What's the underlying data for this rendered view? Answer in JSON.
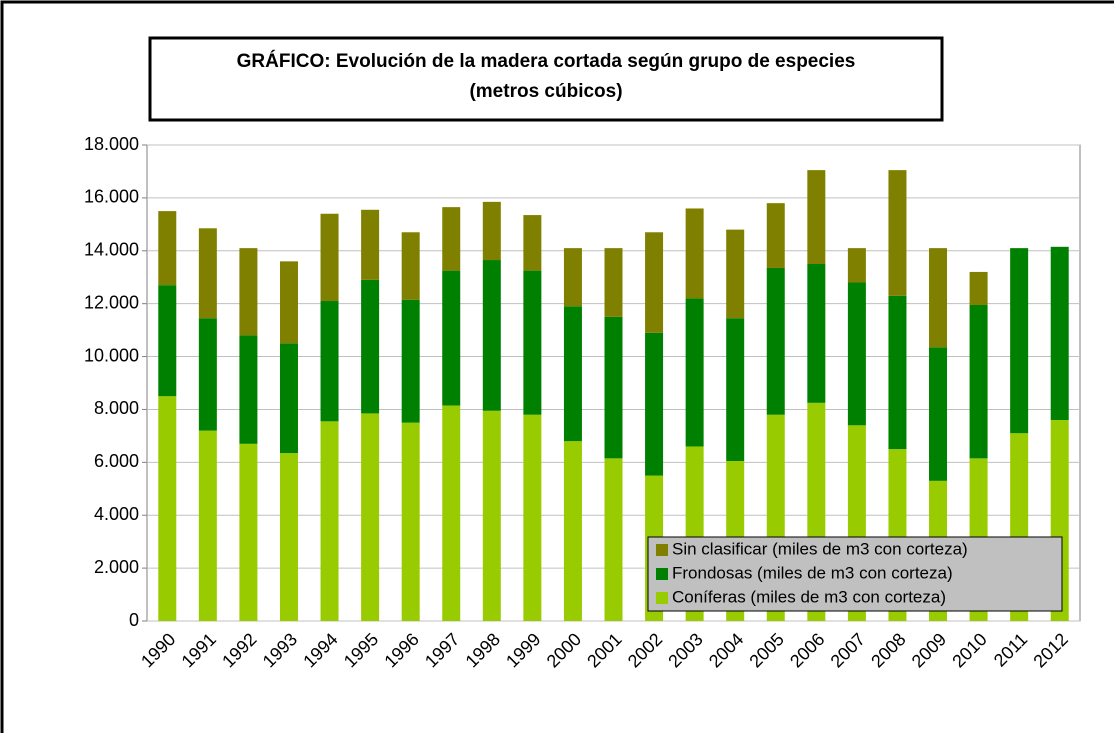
{
  "chart_data": {
    "type": "stacked_bar",
    "title": "GRÁFICO: Evolución de la  madera cortada según grupo de especies",
    "subtitle": "(metros cúbicos)",
    "categories": [
      "1990",
      "1991",
      "1992",
      "1993",
      "1994",
      "1995",
      "1996",
      "1997",
      "1998",
      "1999",
      "2000",
      "2001",
      "2002",
      "2003",
      "2004",
      "2005",
      "2006",
      "2007",
      "2008",
      "2009",
      "2010",
      "2011",
      "2012"
    ],
    "series": [
      {
        "name": "Coníferas (miles de m3 con corteza)",
        "color": "#99cc00",
        "values": [
          8500,
          7200,
          6700,
          6350,
          7550,
          7850,
          7500,
          8150,
          7950,
          7800,
          6800,
          6150,
          5500,
          6600,
          6050,
          7800,
          8250,
          7400,
          6500,
          5300,
          6150,
          7100,
          7600
        ]
      },
      {
        "name": "Frondosas (miles de m3 con corteza)",
        "color": "#008000",
        "values": [
          4200,
          4250,
          4100,
          4150,
          4550,
          5050,
          4650,
          5100,
          5700,
          5450,
          5100,
          5350,
          5400,
          5600,
          5400,
          5550,
          5250,
          5400,
          5800,
          5050,
          5800,
          7000,
          6550
        ]
      },
      {
        "name": "Sin clasificar (miles de m3 con corteza)",
        "color": "#808000",
        "values": [
          2800,
          3400,
          3300,
          3100,
          3300,
          2650,
          2550,
          2400,
          2200,
          2100,
          2200,
          2600,
          3800,
          3400,
          3350,
          2450,
          3550,
          1300,
          4750,
          3750,
          1250,
          0,
          0
        ]
      }
    ],
    "ylim": [
      0,
      18000
    ],
    "yticks": [
      0,
      {
        "value": 2000,
        "label": "2.000"
      },
      {
        "value": 4000,
        "label": "4.000"
      },
      {
        "value": 6000,
        "label": "6.000"
      },
      {
        "value": 8000,
        "label": "8.000"
      },
      {
        "value": 10000,
        "label": "10.000"
      },
      {
        "value": 12000,
        "label": "12.000"
      },
      {
        "value": 14000,
        "label": "14.000"
      },
      {
        "value": 16000,
        "label": "16.000"
      },
      {
        "value": 18000,
        "label": "18.000"
      }
    ],
    "grid": true,
    "legend": "lower right"
  }
}
